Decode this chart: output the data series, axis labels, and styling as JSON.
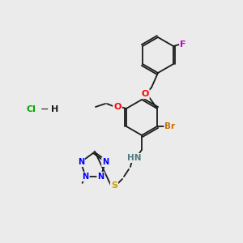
{
  "background_color": "#ebebeb",
  "bond_color": "#1a1a1a",
  "colors": {
    "O": "#ff0000",
    "N": "#0000ff",
    "S": "#c8a000",
    "Br": "#c87000",
    "F": "#cc00cc",
    "Cl": "#00aa00",
    "H": "#507a80",
    "C": "#1a1a1a"
  }
}
